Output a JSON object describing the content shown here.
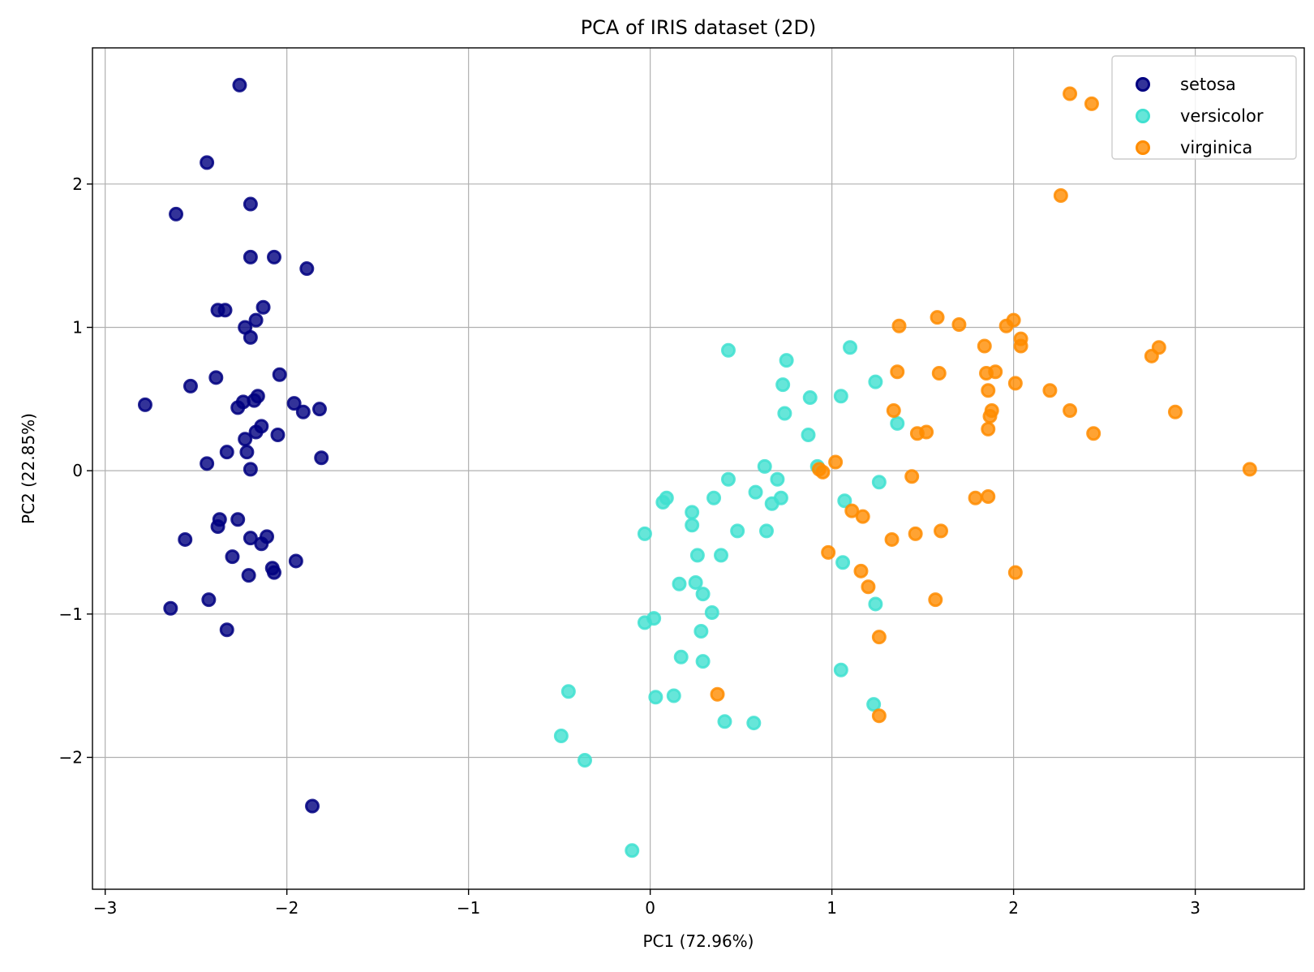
{
  "chart_data": {
    "type": "scatter",
    "title": "PCA of IRIS dataset (2D)",
    "xlabel": "PC1 (72.96%)",
    "ylabel": "PC2 (22.85%)",
    "xlim": [
      -3.07,
      3.6
    ],
    "ylim": [
      -2.92,
      2.95
    ],
    "xticks": [
      -3,
      -2,
      -1,
      0,
      1,
      2,
      3
    ],
    "yticks": [
      -2,
      -1,
      0,
      1,
      2
    ],
    "grid": true,
    "legend_position": "top-right",
    "series": [
      {
        "name": "setosa",
        "color": "#000080",
        "points": [
          [
            -2.26,
            2.69
          ],
          [
            -2.44,
            2.15
          ],
          [
            -2.61,
            1.79
          ],
          [
            -2.2,
            1.86
          ],
          [
            -2.2,
            1.49
          ],
          [
            -2.07,
            1.49
          ],
          [
            -1.89,
            1.41
          ],
          [
            -2.13,
            1.14
          ],
          [
            -2.38,
            1.12
          ],
          [
            -2.34,
            1.12
          ],
          [
            -2.23,
            1.0
          ],
          [
            -2.17,
            1.05
          ],
          [
            -2.2,
            0.93
          ],
          [
            -2.39,
            0.65
          ],
          [
            -2.53,
            0.59
          ],
          [
            -2.04,
            0.67
          ],
          [
            -2.78,
            0.46
          ],
          [
            -2.24,
            0.48
          ],
          [
            -2.27,
            0.44
          ],
          [
            -2.18,
            0.49
          ],
          [
            -2.16,
            0.52
          ],
          [
            -1.96,
            0.47
          ],
          [
            -1.91,
            0.41
          ],
          [
            -1.82,
            0.43
          ],
          [
            -2.14,
            0.31
          ],
          [
            -2.17,
            0.27
          ],
          [
            -2.05,
            0.25
          ],
          [
            -2.23,
            0.22
          ],
          [
            -2.33,
            0.13
          ],
          [
            -2.22,
            0.13
          ],
          [
            -2.44,
            0.05
          ],
          [
            -2.2,
            0.01
          ],
          [
            -1.81,
            0.09
          ],
          [
            -2.56,
            -0.48
          ],
          [
            -2.37,
            -0.34
          ],
          [
            -2.38,
            -0.39
          ],
          [
            -2.27,
            -0.34
          ],
          [
            -2.2,
            -0.47
          ],
          [
            -2.14,
            -0.51
          ],
          [
            -2.11,
            -0.46
          ],
          [
            -2.3,
            -0.6
          ],
          [
            -2.21,
            -0.73
          ],
          [
            -2.08,
            -0.68
          ],
          [
            -2.07,
            -0.71
          ],
          [
            -1.95,
            -0.63
          ],
          [
            -2.64,
            -0.96
          ],
          [
            -2.43,
            -0.9
          ],
          [
            -2.33,
            -1.11
          ],
          [
            -1.86,
            -2.34
          ]
        ]
      },
      {
        "name": "versicolor",
        "color": "#40e0d0",
        "points": [
          [
            0.43,
            0.84
          ],
          [
            0.75,
            0.77
          ],
          [
            1.1,
            0.86
          ],
          [
            0.73,
            0.6
          ],
          [
            0.88,
            0.51
          ],
          [
            1.05,
            0.52
          ],
          [
            1.24,
            0.62
          ],
          [
            0.74,
            0.4
          ],
          [
            1.36,
            0.33
          ],
          [
            0.87,
            0.25
          ],
          [
            0.63,
            0.03
          ],
          [
            0.92,
            0.03
          ],
          [
            0.43,
            -0.06
          ],
          [
            0.7,
            -0.06
          ],
          [
            1.26,
            -0.08
          ],
          [
            0.58,
            -0.15
          ],
          [
            0.09,
            -0.19
          ],
          [
            0.07,
            -0.22
          ],
          [
            0.35,
            -0.19
          ],
          [
            0.72,
            -0.19
          ],
          [
            0.67,
            -0.23
          ],
          [
            1.07,
            -0.21
          ],
          [
            0.23,
            -0.29
          ],
          [
            0.23,
            -0.38
          ],
          [
            -0.03,
            -0.44
          ],
          [
            0.48,
            -0.42
          ],
          [
            0.64,
            -0.42
          ],
          [
            0.26,
            -0.59
          ],
          [
            0.39,
            -0.59
          ],
          [
            1.06,
            -0.64
          ],
          [
            0.16,
            -0.79
          ],
          [
            0.25,
            -0.78
          ],
          [
            0.29,
            -0.86
          ],
          [
            1.24,
            -0.93
          ],
          [
            0.34,
            -0.99
          ],
          [
            0.02,
            -1.03
          ],
          [
            -0.03,
            -1.06
          ],
          [
            0.28,
            -1.12
          ],
          [
            0.17,
            -1.3
          ],
          [
            0.29,
            -1.33
          ],
          [
            1.05,
            -1.39
          ],
          [
            0.13,
            -1.57
          ],
          [
            0.03,
            -1.58
          ],
          [
            1.23,
            -1.63
          ],
          [
            -0.45,
            -1.54
          ],
          [
            -0.49,
            -1.85
          ],
          [
            -0.36,
            -2.02
          ],
          [
            0.41,
            -1.75
          ],
          [
            0.57,
            -1.76
          ],
          [
            -0.1,
            -2.65
          ]
        ]
      },
      {
        "name": "virginica",
        "color": "#ff8c00",
        "points": [
          [
            2.31,
            2.63
          ],
          [
            2.43,
            2.56
          ],
          [
            2.26,
            1.92
          ],
          [
            1.58,
            1.07
          ],
          [
            1.37,
            1.01
          ],
          [
            1.7,
            1.02
          ],
          [
            1.96,
            1.01
          ],
          [
            2.0,
            1.05
          ],
          [
            2.04,
            0.92
          ],
          [
            2.04,
            0.87
          ],
          [
            1.84,
            0.87
          ],
          [
            2.8,
            0.86
          ],
          [
            2.76,
            0.8
          ],
          [
            1.36,
            0.69
          ],
          [
            1.59,
            0.68
          ],
          [
            1.85,
            0.68
          ],
          [
            1.9,
            0.69
          ],
          [
            2.01,
            0.61
          ],
          [
            1.86,
            0.56
          ],
          [
            2.2,
            0.56
          ],
          [
            1.34,
            0.42
          ],
          [
            1.88,
            0.42
          ],
          [
            1.87,
            0.38
          ],
          [
            2.31,
            0.42
          ],
          [
            2.89,
            0.41
          ],
          [
            1.47,
            0.26
          ],
          [
            1.52,
            0.27
          ],
          [
            1.86,
            0.29
          ],
          [
            2.44,
            0.26
          ],
          [
            1.02,
            0.06
          ],
          [
            0.93,
            0.01
          ],
          [
            0.95,
            -0.01
          ],
          [
            1.44,
            -0.04
          ],
          [
            3.3,
            0.01
          ],
          [
            1.79,
            -0.19
          ],
          [
            1.86,
            -0.18
          ],
          [
            1.11,
            -0.28
          ],
          [
            1.17,
            -0.32
          ],
          [
            1.33,
            -0.48
          ],
          [
            1.46,
            -0.44
          ],
          [
            1.6,
            -0.42
          ],
          [
            0.98,
            -0.57
          ],
          [
            1.16,
            -0.7
          ],
          [
            1.2,
            -0.81
          ],
          [
            1.57,
            -0.9
          ],
          [
            2.01,
            -0.71
          ],
          [
            1.26,
            -1.16
          ],
          [
            0.37,
            -1.56
          ],
          [
            1.26,
            -1.71
          ]
        ]
      }
    ]
  }
}
